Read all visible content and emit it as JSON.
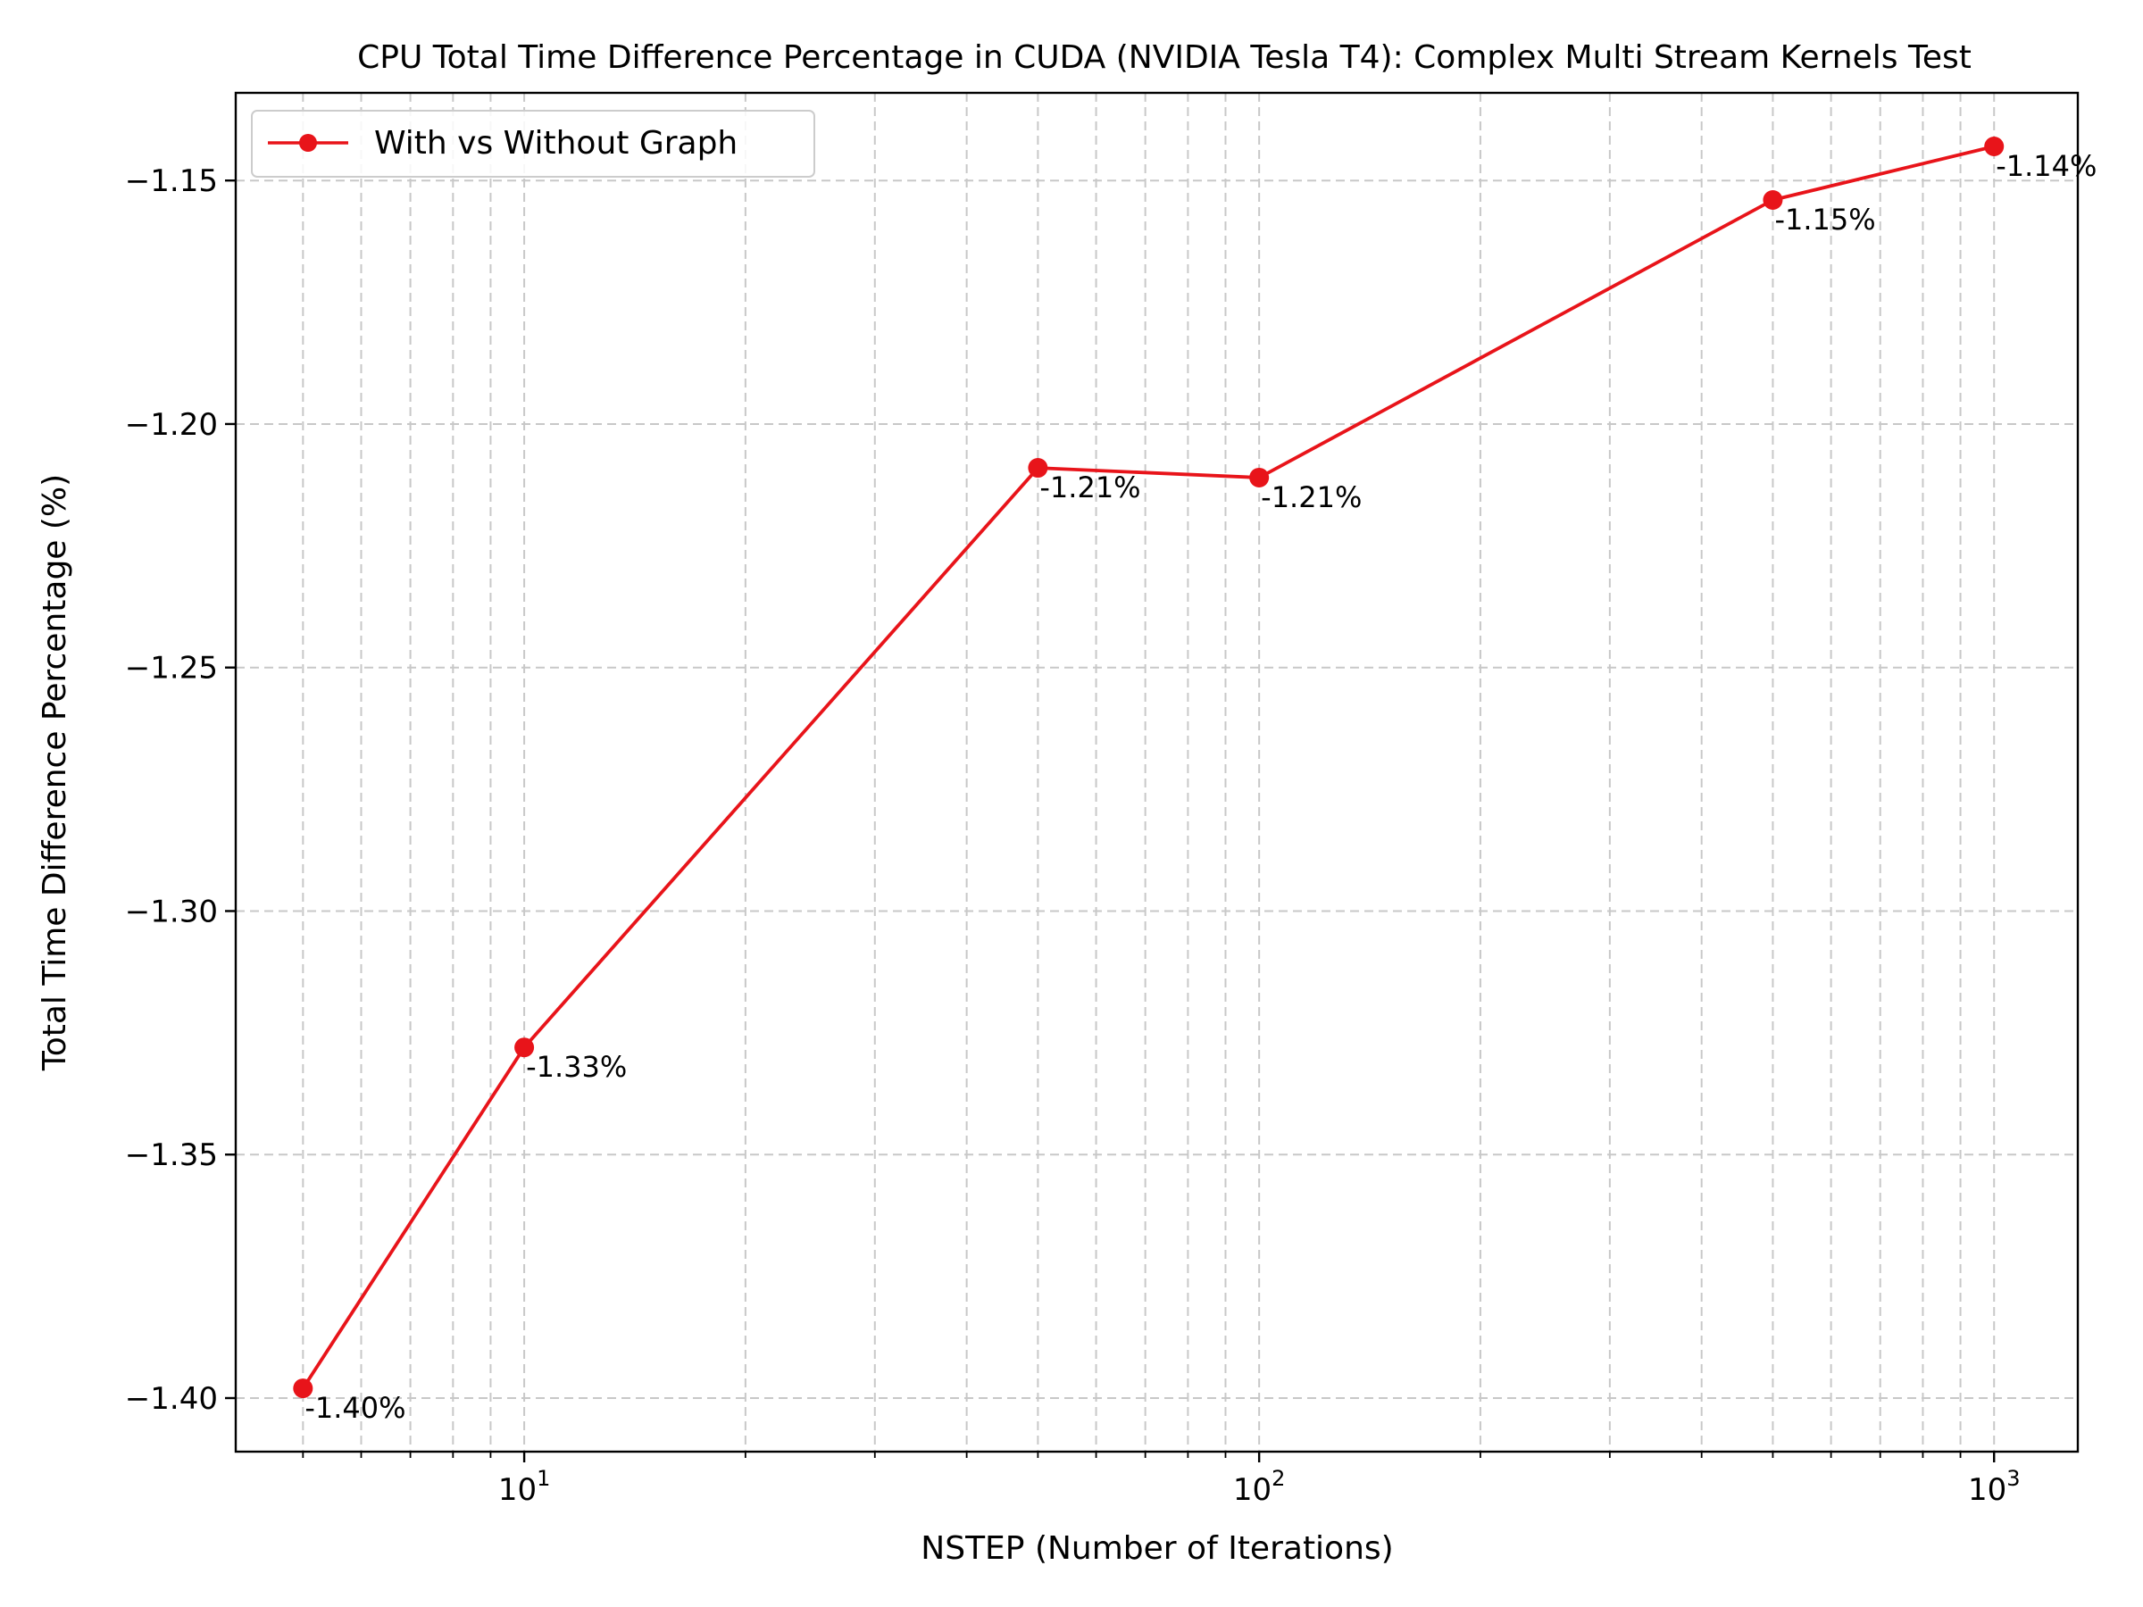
{
  "chart_data": {
    "type": "line",
    "title": "CPU Total Time Difference Percentage in CUDA (NVIDIA Tesla T4): Complex Multi Stream Kernels Test",
    "xlabel": "NSTEP (Number of Iterations)",
    "ylabel": "Total Time Difference Percentage (%)",
    "xscale": "log",
    "xlim": [
      4.05,
      1300
    ],
    "ylim": [
      -1.411,
      -1.132
    ],
    "yticks": [
      -1.4,
      -1.35,
      -1.3,
      -1.25,
      -1.2,
      -1.15
    ],
    "ytick_labels": [
      "−1.40",
      "−1.35",
      "−1.30",
      "−1.25",
      "−1.20",
      "−1.15"
    ],
    "xticks": [
      {
        "value": 10,
        "base": "10",
        "exp": "1"
      },
      {
        "value": 100,
        "base": "10",
        "exp": "2"
      },
      {
        "value": 1000,
        "base": "10",
        "exp": "3"
      }
    ],
    "grid": true,
    "legend_position": "upper left",
    "series": [
      {
        "name": "With vs Without Graph",
        "color": "#e8141a",
        "x": [
          5,
          10,
          50,
          100,
          500,
          1000
        ],
        "y": [
          -1.398,
          -1.328,
          -1.209,
          -1.211,
          -1.154,
          -1.143
        ],
        "labels": [
          "-1.40%",
          "-1.33%",
          "-1.21%",
          "-1.21%",
          "-1.15%",
          "-1.14%"
        ]
      }
    ]
  }
}
